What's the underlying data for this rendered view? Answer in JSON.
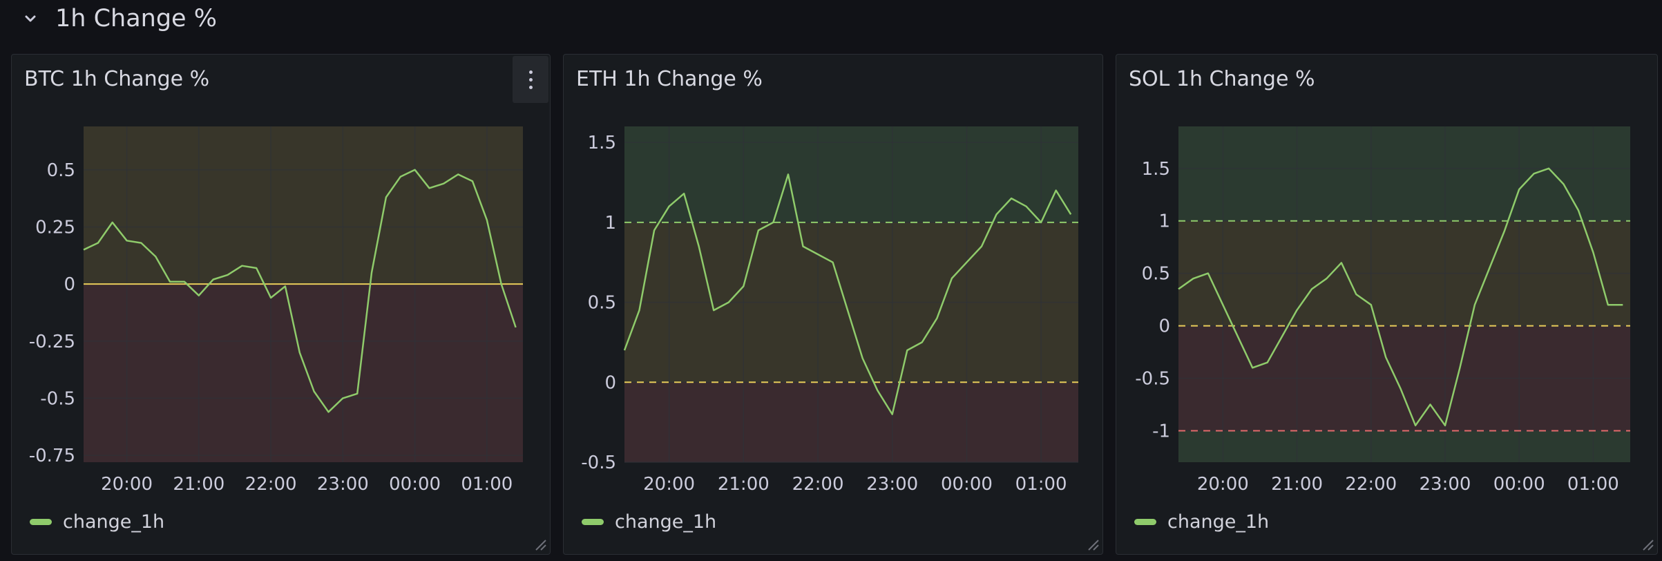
{
  "row": {
    "title": "1h Change %"
  },
  "colors": {
    "line": "#8fcb6b",
    "zone_green": "#2b3a30",
    "zone_yellow": "#38362a",
    "zone_red": "#3a2a2f",
    "threshold_yellow": "#e8cd5a",
    "threshold_green": "#8fcb6b",
    "threshold_red": "#e26b6b",
    "grid": "#2f3238"
  },
  "panels": [
    {
      "title": "BTC 1h Change %",
      "legend": "change_1h",
      "menu_icon": "kebab-menu-icon"
    },
    {
      "title": "ETH 1h Change %",
      "legend": "change_1h",
      "menu_icon": "kebab-menu-icon"
    },
    {
      "title": "SOL 1h Change %",
      "legend": "change_1h",
      "menu_icon": "kebab-menu-icon"
    }
  ],
  "chart_data": [
    {
      "type": "line",
      "title": "BTC 1h Change %",
      "series": [
        {
          "name": "change_1h"
        }
      ],
      "x_ticks": [
        "20:00",
        "21:00",
        "22:00",
        "23:00",
        "00:00",
        "01:00"
      ],
      "y_ticks": [
        0.5,
        0.25,
        0,
        -0.25,
        -0.5,
        -0.75
      ],
      "ylim": [
        -0.78,
        0.69
      ],
      "thresholds": [
        {
          "value": 0,
          "style": "solid",
          "color": "yellow"
        }
      ],
      "zones": [
        {
          "from": 0,
          "to": 0.69,
          "color": "yellow"
        },
        {
          "from": -0.78,
          "to": 0,
          "color": "red"
        }
      ],
      "x": [
        19.4,
        19.6,
        19.8,
        20.0,
        20.2,
        20.4,
        20.6,
        20.8,
        21.0,
        21.2,
        21.4,
        21.6,
        21.8,
        22.0,
        22.2,
        22.4,
        22.6,
        22.8,
        23.0,
        23.2,
        23.4,
        23.6,
        23.8,
        24.0,
        24.2,
        24.4,
        24.6,
        24.8,
        25.0,
        25.2,
        25.4
      ],
      "values": [
        0.15,
        0.18,
        0.27,
        0.19,
        0.18,
        0.12,
        0.01,
        0.01,
        -0.05,
        0.02,
        0.04,
        0.08,
        0.07,
        -0.06,
        -0.01,
        -0.3,
        -0.47,
        -0.56,
        -0.5,
        -0.48,
        0.05,
        0.38,
        0.47,
        0.5,
        0.42,
        0.44,
        0.48,
        0.45,
        0.28,
        0.0,
        -0.19
      ]
    },
    {
      "type": "line",
      "title": "ETH 1h Change %",
      "series": [
        {
          "name": "change_1h"
        }
      ],
      "x_ticks": [
        "20:00",
        "21:00",
        "22:00",
        "23:00",
        "00:00",
        "01:00"
      ],
      "y_ticks": [
        1.5,
        1,
        0.5,
        0,
        -0.5
      ],
      "ylim": [
        -0.5,
        1.6
      ],
      "thresholds": [
        {
          "value": 1,
          "style": "dashed",
          "color": "green"
        },
        {
          "value": 0,
          "style": "dashed",
          "color": "yellow"
        }
      ],
      "zones": [
        {
          "from": 1,
          "to": 1.6,
          "color": "green"
        },
        {
          "from": 0,
          "to": 1,
          "color": "yellow"
        },
        {
          "from": -0.5,
          "to": 0,
          "color": "red"
        }
      ],
      "x": [
        19.4,
        19.6,
        19.8,
        20.0,
        20.2,
        20.4,
        20.6,
        20.8,
        21.0,
        21.2,
        21.4,
        21.6,
        21.8,
        22.0,
        22.2,
        22.4,
        22.6,
        22.8,
        23.0,
        23.2,
        23.4,
        23.6,
        23.8,
        24.0,
        24.2,
        24.4,
        24.6,
        24.8,
        25.0,
        25.2,
        25.4
      ],
      "values": [
        0.2,
        0.45,
        0.95,
        1.1,
        1.18,
        0.85,
        0.45,
        0.5,
        0.6,
        0.95,
        1.0,
        1.3,
        0.85,
        0.8,
        0.75,
        0.45,
        0.15,
        -0.05,
        -0.2,
        0.2,
        0.25,
        0.4,
        0.65,
        0.75,
        0.85,
        1.05,
        1.15,
        1.1,
        1.0,
        1.2,
        1.05
      ]
    },
    {
      "type": "line",
      "title": "SOL 1h Change %",
      "series": [
        {
          "name": "change_1h"
        }
      ],
      "x_ticks": [
        "20:00",
        "21:00",
        "22:00",
        "23:00",
        "00:00",
        "01:00"
      ],
      "y_ticks": [
        1.5,
        1,
        0.5,
        0,
        -0.5,
        -1
      ],
      "ylim": [
        -1.3,
        1.9
      ],
      "thresholds": [
        {
          "value": 1,
          "style": "dashed",
          "color": "green"
        },
        {
          "value": 0,
          "style": "dashed",
          "color": "yellow"
        },
        {
          "value": -1,
          "style": "dashed",
          "color": "red"
        }
      ],
      "zones": [
        {
          "from": 1,
          "to": 1.9,
          "color": "green"
        },
        {
          "from": 0,
          "to": 1,
          "color": "yellow"
        },
        {
          "from": -1,
          "to": 0,
          "color": "red"
        },
        {
          "from": -1.3,
          "to": -1,
          "color": "green"
        }
      ],
      "x": [
        19.4,
        19.6,
        19.8,
        20.0,
        20.2,
        20.4,
        20.6,
        20.8,
        21.0,
        21.2,
        21.4,
        21.6,
        21.8,
        22.0,
        22.2,
        22.4,
        22.6,
        22.8,
        23.0,
        23.2,
        23.4,
        23.6,
        23.8,
        24.0,
        24.2,
        24.4,
        24.6,
        24.8,
        25.0,
        25.2,
        25.4
      ],
      "values": [
        0.35,
        0.45,
        0.5,
        0.2,
        -0.1,
        -0.4,
        -0.35,
        -0.1,
        0.15,
        0.35,
        0.45,
        0.6,
        0.3,
        0.2,
        -0.3,
        -0.6,
        -0.95,
        -0.75,
        -0.95,
        -0.4,
        0.2,
        0.55,
        0.9,
        1.3,
        1.45,
        1.5,
        1.35,
        1.1,
        0.7,
        0.2,
        0.2
      ]
    }
  ]
}
